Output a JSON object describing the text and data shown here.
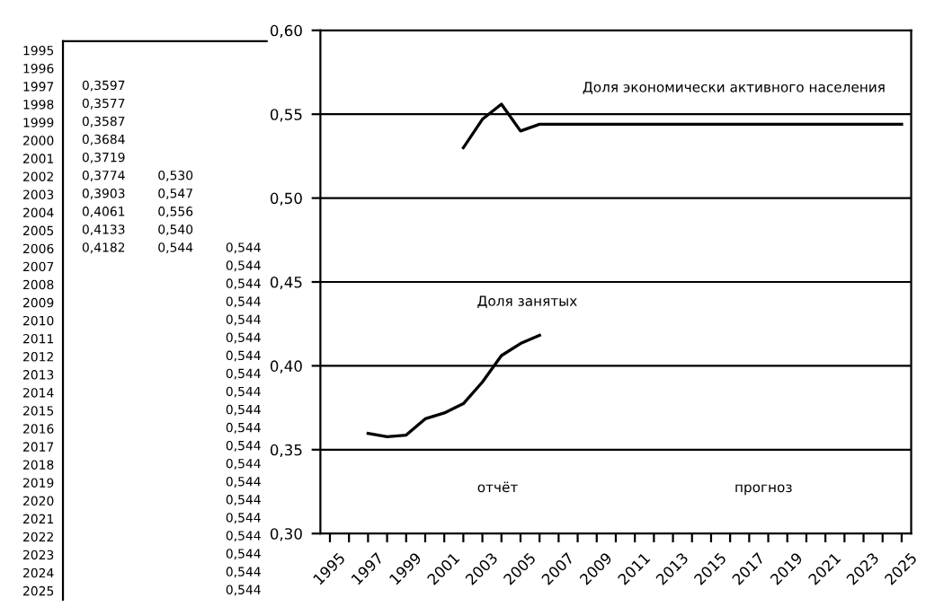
{
  "chart_data": [
    {
      "type": "heatmap",
      "tick_labels": "y",
      "categories": [
        null,
        null,
        null
      ],
      "y_categories": [
        "1995",
        "1996",
        "1997",
        "1998",
        "1999",
        "2000",
        "2001",
        "2002",
        "2003",
        "2004",
        "2005",
        "2006",
        "2007",
        "2008",
        "2009",
        "2010",
        "2011",
        "2012",
        "2013",
        "2014",
        "2015",
        "2016",
        "2017",
        "2018",
        "2019",
        "2020",
        "2021",
        "2022",
        "2023",
        "2024",
        "2025"
      ],
      "cells": [
        [
          null,
          null,
          null
        ],
        [
          null,
          null,
          null
        ],
        [
          null,
          null,
          null
        ],
        [
          null,
          null,
          null
        ],
        [
          null,
          null,
          null
        ],
        [
          null,
          null,
          null
        ],
        [
          null,
          null,
          null
        ],
        [
          null,
          null,
          null
        ],
        [
          null,
          null,
          null
        ],
        [
          null,
          null,
          null
        ],
        [
          null,
          null,
          null
        ],
        [
          null,
          null,
          null
        ],
        [
          null,
          null,
          null
        ],
        [
          null,
          null,
          null
        ],
        [
          null,
          null,
          null
        ],
        [
          null,
          null,
          null
        ],
        [
          null,
          null,
          null
        ],
        [
          null,
          null,
          null
        ],
        [
          null,
          null,
          null
        ],
        [
          null,
          null,
          null
        ],
        [
          null,
          null,
          null
        ],
        [
          null,
          null,
          null
        ],
        [
          null,
          null,
          null
        ],
        [
          null,
          null,
          null
        ],
        [
          null,
          null,
          null
        ],
        [
          null,
          null,
          null
        ],
        [
          null,
          null,
          null
        ],
        [
          null,
          null,
          null
        ],
        [
          null,
          null,
          null
        ],
        [
          null,
          null,
          null
        ],
        [
          null,
          null,
          null
        ]
      ],
      "cell_labels": [
        [
          null,
          null,
          null
        ],
        [
          null,
          null,
          null
        ],
        [
          "0,3597",
          null,
          null
        ],
        [
          "0,3577",
          null,
          null
        ],
        [
          "0,3587",
          null,
          null
        ],
        [
          "0,3684",
          null,
          null
        ],
        [
          "0,3719",
          null,
          null
        ],
        [
          "0,3774",
          "0,530",
          null
        ],
        [
          "0,3903",
          "0,547",
          null
        ],
        [
          "0,4061",
          "0,556",
          null
        ],
        [
          "0,4133",
          "0,540",
          null
        ],
        [
          "0,4182",
          "0,544",
          "0,544"
        ],
        [
          null,
          null,
          "0,544"
        ],
        [
          null,
          null,
          "0,544"
        ],
        [
          null,
          null,
          "0,544"
        ],
        [
          null,
          null,
          "0,544"
        ],
        [
          null,
          null,
          "0,544"
        ],
        [
          null,
          null,
          "0,544"
        ],
        [
          null,
          null,
          "0,544"
        ],
        [
          null,
          null,
          "0,544"
        ],
        [
          null,
          null,
          "0,544"
        ],
        [
          null,
          null,
          "0,544"
        ],
        [
          null,
          null,
          "0,544"
        ],
        [
          null,
          null,
          "0,544"
        ],
        [
          null,
          null,
          "0,544"
        ],
        [
          null,
          null,
          "0,544"
        ],
        [
          null,
          null,
          "0,544"
        ],
        [
          null,
          null,
          "0,544"
        ],
        [
          null,
          null,
          "0,544"
        ],
        [
          null,
          null,
          "0,544"
        ],
        [
          null,
          null,
          "0,544"
        ]
      ]
    },
    {
      "type": "line",
      "categories": [
        "1995",
        null,
        "1997",
        null,
        "1999",
        null,
        "2001",
        null,
        "2003",
        null,
        "2005",
        null,
        "2007",
        null,
        "2009",
        null,
        "2011",
        null,
        "2013",
        null,
        "2015",
        null,
        "2017",
        null,
        "2019",
        null,
        "2021",
        null,
        "2023",
        null,
        "2025"
      ],
      "series": [
        {
          "color": "#000000",
          "values": [
            null,
            null,
            0.3597,
            0.3577,
            0.3587,
            0.3684,
            0.3719,
            0.3774,
            0.3903,
            0.4061,
            0.4133,
            0.4182,
            null,
            null,
            null,
            null,
            null,
            null,
            null,
            null,
            null,
            null,
            null,
            null,
            null,
            null,
            null,
            null,
            null,
            null,
            null
          ]
        },
        {
          "color": "#000000",
          "values": [
            null,
            null,
            null,
            null,
            null,
            null,
            null,
            0.53,
            0.547,
            0.556,
            0.54,
            0.544,
            0.544,
            0.544,
            0.544,
            0.544,
            0.544,
            0.544,
            0.544,
            0.544,
            0.544,
            0.544,
            0.544,
            0.544,
            0.544,
            0.544,
            0.544,
            0.544,
            0.544,
            0.544,
            0.544
          ]
        }
      ],
      "ylim": [
        0.3,
        0.6
      ],
      "yticks": [
        {
          "value": 0.3,
          "label": "0,30"
        },
        {
          "value": 0.35,
          "label": "0,35"
        },
        {
          "value": 0.4,
          "label": "0,40"
        },
        {
          "value": 0.45,
          "label": "0,45"
        },
        {
          "value": 0.5,
          "label": "0,50"
        },
        {
          "value": 0.55,
          "label": "0,55"
        },
        {
          "value": 0.6,
          "label": "0,60"
        }
      ],
      "grid": "y",
      "marker": "none",
      "line_style": "solid",
      "annotations": [
        "Доля экономически активного населения",
        "Доля занятых",
        "отчёт",
        "прогноз"
      ]
    }
  ]
}
